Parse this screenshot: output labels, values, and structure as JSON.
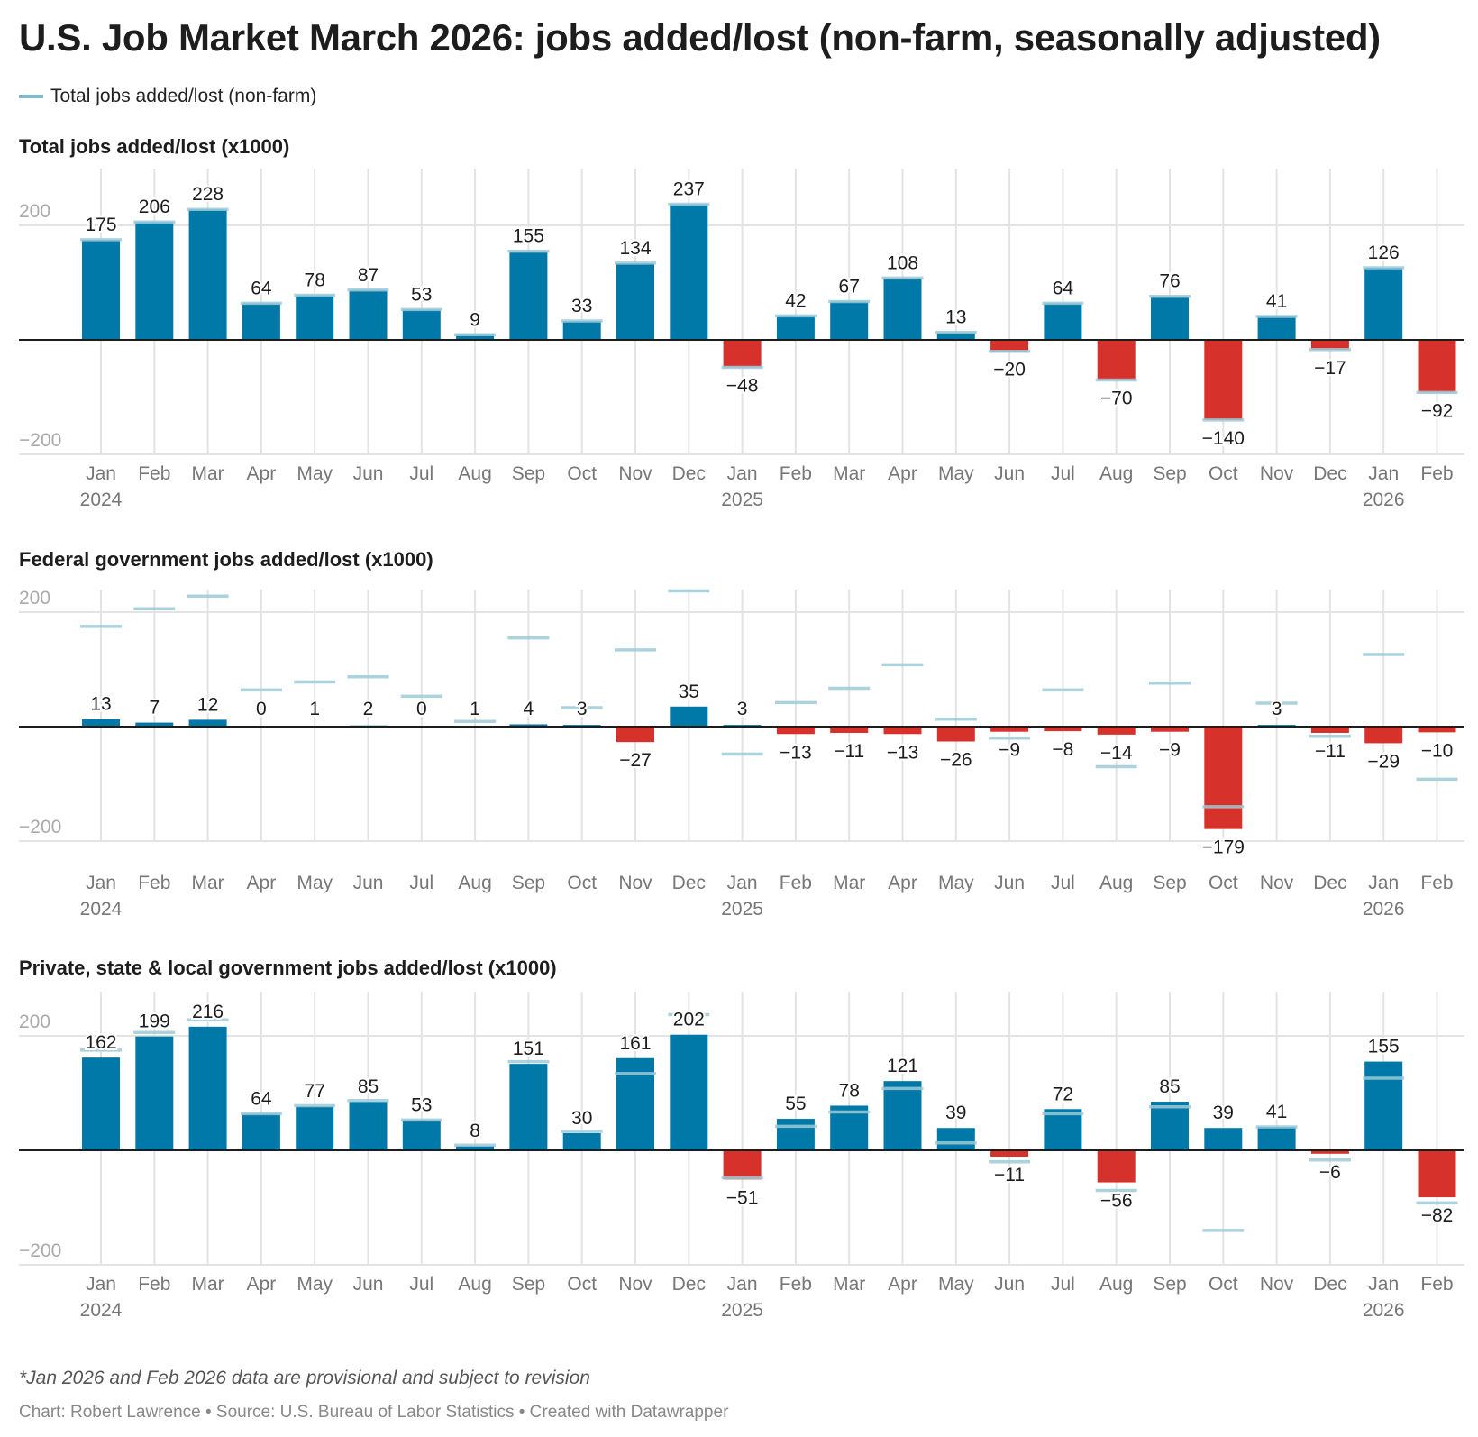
{
  "title": "U.S. Job Market March 2026: jobs added/lost (non-farm, seasonally adjusted)",
  "legend": {
    "label": "Total jobs added/lost (non-farm)",
    "color": "#7fb9cf"
  },
  "colors": {
    "positive": "#0079a8",
    "negative": "#d7312c",
    "reference": "#9ecbd9",
    "grid": "#e3e3e3",
    "zero_line": "#1d1d1d"
  },
  "chart_data": [
    {
      "type": "bar",
      "title": "Total jobs added/lost (x1000)",
      "categories": [
        "Jan",
        "Feb",
        "Mar",
        "Apr",
        "May",
        "Jun",
        "Jul",
        "Aug",
        "Sep",
        "Oct",
        "Nov",
        "Dec",
        "Jan",
        "Feb",
        "Mar",
        "Apr",
        "May",
        "Jun",
        "Jul",
        "Aug",
        "Sep",
        "Oct",
        "Nov",
        "Dec",
        "Jan",
        "Feb"
      ],
      "year_labels": {
        "0": "2024",
        "12": "2025",
        "24": "2026"
      },
      "values": [
        175,
        206,
        228,
        64,
        78,
        87,
        53,
        9,
        155,
        33,
        134,
        237,
        -48,
        42,
        67,
        108,
        13,
        -20,
        64,
        -70,
        76,
        -140,
        41,
        -17,
        126,
        -92
      ],
      "reference_series": {
        "name": "Total jobs added/lost (non-farm)",
        "values": [
          175,
          206,
          228,
          64,
          78,
          87,
          53,
          9,
          155,
          33,
          134,
          237,
          -48,
          42,
          67,
          108,
          13,
          -20,
          64,
          -70,
          76,
          -140,
          41,
          -17,
          126,
          -92
        ]
      },
      "y_ticks": [
        "200",
        "−200"
      ],
      "ylim": [
        -200,
        270
      ],
      "grid": true
    },
    {
      "type": "bar",
      "title": "Federal government jobs added/lost (x1000)",
      "categories": [
        "Jan",
        "Feb",
        "Mar",
        "Apr",
        "May",
        "Jun",
        "Jul",
        "Aug",
        "Sep",
        "Oct",
        "Nov",
        "Dec",
        "Jan",
        "Feb",
        "Mar",
        "Apr",
        "May",
        "Jun",
        "Jul",
        "Aug",
        "Sep",
        "Oct",
        "Nov",
        "Dec",
        "Jan",
        "Feb"
      ],
      "year_labels": {
        "0": "2024",
        "12": "2025",
        "24": "2026"
      },
      "values": [
        13,
        7,
        12,
        0,
        1,
        2,
        0,
        1,
        4,
        3,
        -27,
        35,
        3,
        -13,
        -11,
        -13,
        -26,
        -9,
        -8,
        -14,
        -9,
        -179,
        3,
        -11,
        -29,
        -10
      ],
      "reference_series": {
        "name": "Total jobs added/lost (non-farm)",
        "values": [
          175,
          206,
          228,
          64,
          78,
          87,
          53,
          9,
          155,
          33,
          134,
          237,
          -48,
          42,
          67,
          108,
          13,
          -20,
          64,
          -70,
          76,
          -140,
          41,
          -17,
          126,
          -92
        ]
      },
      "y_ticks": [
        "200",
        "−200"
      ],
      "ylim": [
        -200,
        240
      ],
      "grid": true
    },
    {
      "type": "bar",
      "title": "Private, state & local government jobs added/lost (x1000)",
      "categories": [
        "Jan",
        "Feb",
        "Mar",
        "Apr",
        "May",
        "Jun",
        "Jul",
        "Aug",
        "Sep",
        "Oct",
        "Nov",
        "Dec",
        "Jan",
        "Feb",
        "Mar",
        "Apr",
        "May",
        "Jun",
        "Jul",
        "Aug",
        "Sep",
        "Oct",
        "Nov",
        "Dec",
        "Jan",
        "Feb"
      ],
      "year_labels": {
        "0": "2024",
        "12": "2025",
        "24": "2026"
      },
      "values": [
        162,
        199,
        216,
        64,
        77,
        85,
        53,
        8,
        151,
        30,
        161,
        202,
        -51,
        55,
        78,
        121,
        39,
        -11,
        72,
        -56,
        85,
        39,
        41,
        -6,
        155,
        -82
      ],
      "reference_series": {
        "name": "Total jobs added/lost (non-farm)",
        "values": [
          175,
          206,
          228,
          64,
          78,
          87,
          53,
          9,
          155,
          33,
          134,
          237,
          -48,
          42,
          67,
          108,
          13,
          -20,
          64,
          -70,
          76,
          -140,
          41,
          -17,
          126,
          -92
        ]
      },
      "y_ticks": [
        "200",
        "−200"
      ],
      "ylim": [
        -200,
        270
      ],
      "grid": true
    }
  ],
  "footnote": "*Jan 2026 and Feb 2026 data are provisional and subject to revision",
  "credit": "Chart: Robert Lawrence • Source: U.S. Bureau of Labor Statistics • Created with Datawrapper"
}
